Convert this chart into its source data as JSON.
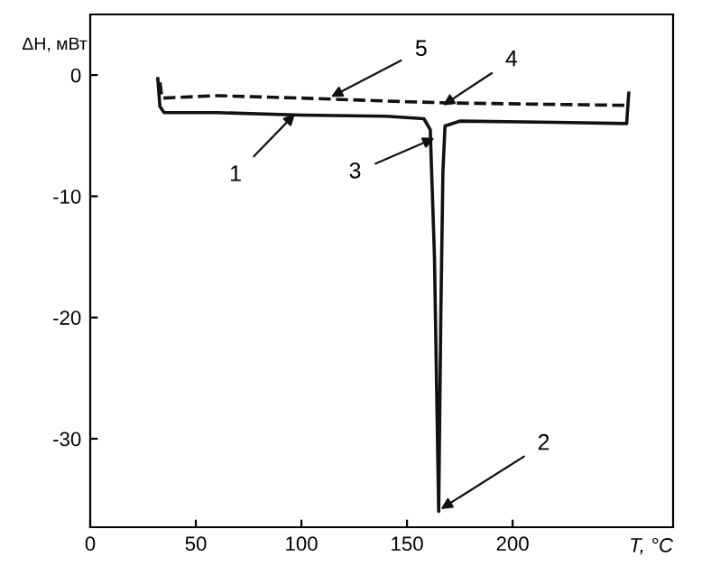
{
  "chart_data": {
    "type": "line",
    "xlabel": "T, °C",
    "ylabel": "ΔH, мВт",
    "xlim": [
      0,
      276
    ],
    "ylim": [
      -37.3,
      5
    ],
    "xticks": [
      0,
      50,
      100,
      150,
      200
    ],
    "yticks": [
      {
        "value": 0,
        "label": "0"
      },
      {
        "value": -10,
        "label": "-10"
      },
      {
        "value": -20,
        "label": "-20"
      },
      {
        "value": -30,
        "label": "-30"
      }
    ],
    "grid": false,
    "legend": false,
    "marker": "none",
    "series": [
      {
        "color": "#111111",
        "line_style": "solid",
        "x": [
          32,
          33,
          35,
          60,
          100,
          140,
          158,
          161,
          163,
          165,
          166,
          167,
          168,
          175,
          220,
          254,
          255
        ],
        "values": [
          -0.3,
          -2.6,
          -3.1,
          -3.1,
          -3.3,
          -3.4,
          -3.6,
          -4.5,
          -15,
          -36,
          -20,
          -8,
          -4.2,
          -3.8,
          -3.9,
          -4.0,
          -1.5
        ]
      },
      {
        "color": "#111111",
        "line_style": "dashed",
        "x": [
          33,
          34,
          60,
          100,
          150,
          170,
          254
        ],
        "values": [
          -0.6,
          -1.9,
          -1.7,
          -1.9,
          -2.2,
          -2.3,
          -2.5
        ]
      }
    ],
    "annotations": [
      {
        "text": "1",
        "x": 97,
        "y": -3.2
      },
      {
        "text": "2",
        "x": 166,
        "y": -35.8
      },
      {
        "text": "3",
        "x": 163,
        "y": -5.2
      },
      {
        "text": "4",
        "x": 167,
        "y": -2.5
      },
      {
        "text": "5",
        "x": 114,
        "y": -1.8
      }
    ]
  }
}
